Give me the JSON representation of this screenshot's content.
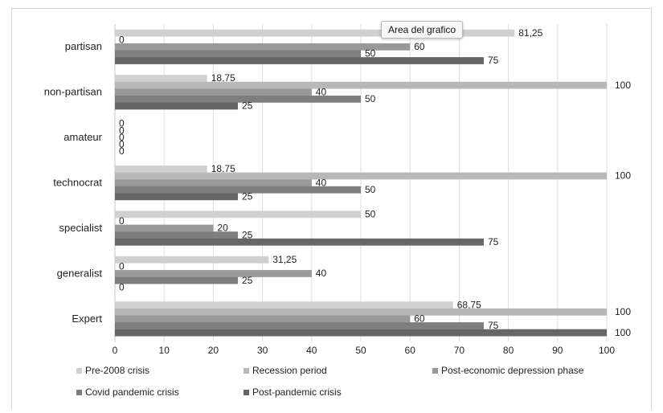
{
  "tooltip": "Area del grafico",
  "chart_data": {
    "type": "bar",
    "orientation": "horizontal",
    "categories": [
      "partisan",
      "non-partisan",
      "amateur",
      "technocrat",
      "specialist",
      "generalist",
      "Expert"
    ],
    "series": [
      {
        "name": "Pre-2008 crisis",
        "color": "#d0d0d0",
        "values": [
          81.25,
          18.75,
          0,
          18.75,
          50,
          31.25,
          68.75
        ],
        "labels": [
          "81,25",
          "18,75",
          "0",
          "18,75",
          "50",
          "31,25",
          "68,75"
        ]
      },
      {
        "name": "Recession period",
        "color": "#b8b8b8",
        "values": [
          0,
          100,
          0,
          100,
          0,
          0,
          100
        ],
        "labels": [
          "0",
          "100",
          "0",
          "100",
          "0",
          "0",
          "100"
        ]
      },
      {
        "name": "Post-economic depression phase",
        "color": "#999999",
        "values": [
          60,
          40,
          0,
          40,
          20,
          40,
          60
        ],
        "labels": [
          "60",
          "40",
          "0",
          "40",
          "20",
          "40",
          "60"
        ]
      },
      {
        "name": "Covid pandemic crisis",
        "color": "#7e7e7e",
        "values": [
          50,
          50,
          0,
          50,
          25,
          25,
          75
        ],
        "labels": [
          "50",
          "50",
          "0",
          "50",
          "25",
          "25",
          "75"
        ]
      },
      {
        "name": "Post-pandemic crisis",
        "color": "#666666",
        "values": [
          75,
          25,
          0,
          25,
          75,
          0,
          100
        ],
        "labels": [
          "75",
          "25",
          "0",
          "25",
          "75",
          "0",
          "100"
        ]
      }
    ],
    "xlim": [
      0,
      100
    ],
    "xticks": [
      0,
      10,
      20,
      30,
      40,
      50,
      60,
      70,
      80,
      90,
      100
    ],
    "grid": true,
    "legend_position": "bottom"
  }
}
